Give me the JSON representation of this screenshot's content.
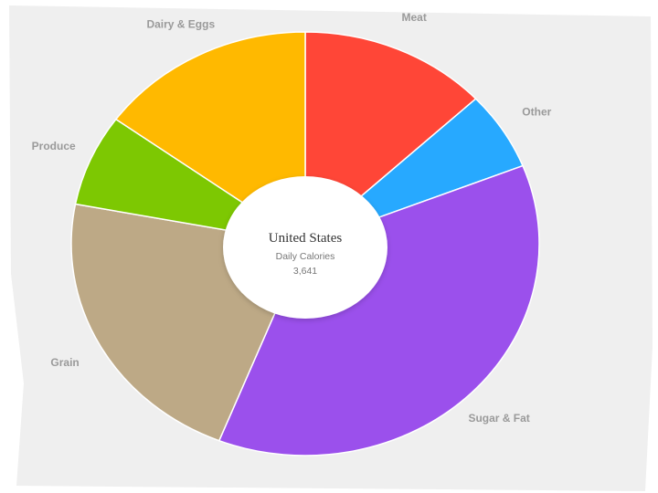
{
  "chart_data": {
    "type": "pie",
    "center": {
      "title": "United States",
      "subtitle": "Daily Calories",
      "value": "3,641"
    },
    "categories": [
      "Meat",
      "Other",
      "Sugar & Fat",
      "Grain",
      "Produce",
      "Dairy & Eggs"
    ],
    "values": [
      13,
      6,
      37,
      22,
      7,
      15
    ],
    "colors": [
      "#ff4637",
      "#27a9ff",
      "#9b50ec",
      "#bda986",
      "#7dc802",
      "#ffb900"
    ]
  }
}
